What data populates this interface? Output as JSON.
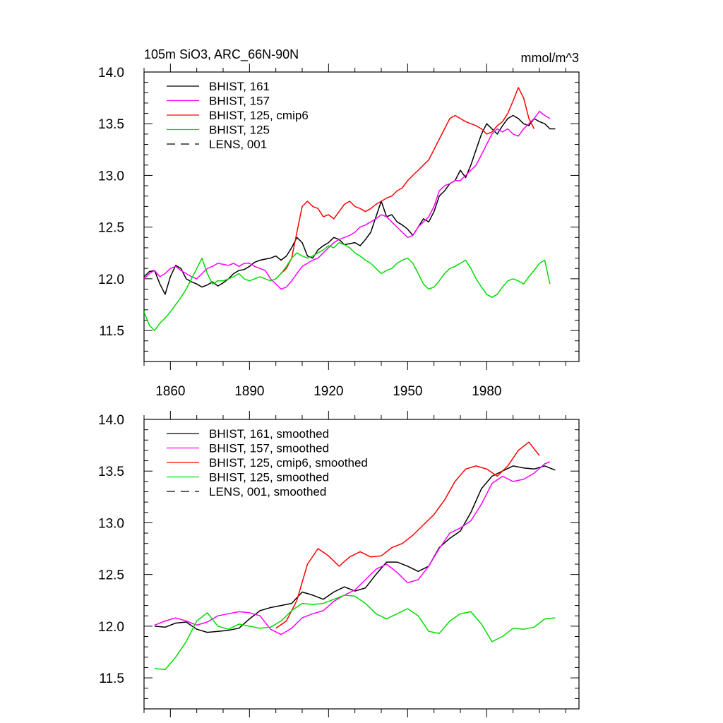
{
  "figure": {
    "title_left": "105m SiO3, ARC_66N-90N",
    "title_right": "mmol/m^3"
  },
  "chart_data": [
    {
      "type": "line",
      "title": "105m SiO3, ARC_66N-90N",
      "units": "mmol/m^3",
      "xlim": [
        1850,
        2015
      ],
      "ylim": [
        11.2,
        14.0
      ],
      "xticks": [
        1860,
        1890,
        1920,
        1950,
        1980
      ],
      "xtick_labels": [
        "1860",
        "1890",
        "1920",
        "1950",
        "1980"
      ],
      "yticks": [
        11.5,
        12.0,
        12.5,
        13.0,
        13.5,
        14.0
      ],
      "ytick_labels": [
        "11.5",
        "12.0",
        "12.5",
        "13.0",
        "13.5",
        "14.0"
      ],
      "legend_position": "top-left",
      "series": [
        {
          "name": "BHIST, 161",
          "color": "#000000",
          "dash": "solid",
          "x": [
            1850,
            1852,
            1854,
            1856,
            1858,
            1860,
            1862,
            1864,
            1866,
            1868,
            1870,
            1872,
            1874,
            1876,
            1878,
            1880,
            1882,
            1884,
            1886,
            1888,
            1890,
            1892,
            1894,
            1896,
            1898,
            1900,
            1902,
            1904,
            1906,
            1908,
            1910,
            1912,
            1914,
            1916,
            1918,
            1920,
            1922,
            1924,
            1926,
            1928,
            1930,
            1932,
            1934,
            1936,
            1938,
            1940,
            1942,
            1944,
            1946,
            1948,
            1950,
            1952,
            1954,
            1956,
            1958,
            1960,
            1962,
            1964,
            1966,
            1968,
            1970,
            1972,
            1974,
            1976,
            1978,
            1980,
            1982,
            1984,
            1986,
            1988,
            1990,
            1992,
            1994,
            1996,
            1998,
            2000,
            2002,
            2004,
            2006
          ],
          "y": [
            12.02,
            12.07,
            12.08,
            11.95,
            11.85,
            12.02,
            12.13,
            12.1,
            12.0,
            11.97,
            11.95,
            11.92,
            11.94,
            11.97,
            11.93,
            11.96,
            12.0,
            12.05,
            12.08,
            12.09,
            12.12,
            12.16,
            12.18,
            12.19,
            12.2,
            12.22,
            12.18,
            12.22,
            12.3,
            12.4,
            12.35,
            12.22,
            12.2,
            12.28,
            12.32,
            12.35,
            12.4,
            12.38,
            12.33,
            12.34,
            12.35,
            12.32,
            12.38,
            12.45,
            12.6,
            12.75,
            12.6,
            12.62,
            12.55,
            12.52,
            12.48,
            12.42,
            12.5,
            12.58,
            12.55,
            12.65,
            12.8,
            12.85,
            12.92,
            12.95,
            13.05,
            12.98,
            13.1,
            13.25,
            13.4,
            13.5,
            13.45,
            13.4,
            13.48,
            13.55,
            13.58,
            13.55,
            13.5,
            13.48,
            13.55,
            13.52,
            13.5,
            13.45,
            13.45
          ]
        },
        {
          "name": "BHIST, 157",
          "color": "#ff00ff",
          "dash": "solid",
          "x": [
            1850,
            1852,
            1854,
            1856,
            1858,
            1860,
            1862,
            1864,
            1866,
            1868,
            1870,
            1872,
            1874,
            1876,
            1878,
            1880,
            1882,
            1884,
            1886,
            1888,
            1890,
            1892,
            1894,
            1896,
            1898,
            1900,
            1902,
            1904,
            1906,
            1908,
            1910,
            1912,
            1914,
            1916,
            1918,
            1920,
            1922,
            1924,
            1926,
            1928,
            1930,
            1932,
            1934,
            1936,
            1938,
            1940,
            1942,
            1944,
            1946,
            1948,
            1950,
            1952,
            1954,
            1956,
            1958,
            1960,
            1962,
            1964,
            1966,
            1968,
            1970,
            1972,
            1974,
            1976,
            1978,
            1980,
            1982,
            1984,
            1986,
            1988,
            1990,
            1992,
            1994,
            1996,
            1998,
            2000,
            2002,
            2004
          ],
          "y": [
            12.0,
            12.05,
            12.08,
            12.02,
            12.05,
            12.1,
            12.12,
            12.08,
            12.05,
            12.02,
            12.0,
            12.05,
            12.1,
            12.12,
            12.15,
            12.14,
            12.13,
            12.15,
            12.12,
            12.15,
            12.15,
            12.12,
            12.1,
            12.08,
            12.0,
            11.95,
            11.9,
            11.92,
            11.98,
            12.05,
            12.12,
            12.15,
            12.18,
            12.2,
            12.25,
            12.3,
            12.35,
            12.38,
            12.4,
            12.42,
            12.45,
            12.5,
            12.52,
            12.55,
            12.58,
            12.62,
            12.6,
            12.55,
            12.5,
            12.45,
            12.4,
            12.42,
            12.5,
            12.55,
            12.6,
            12.7,
            12.85,
            12.9,
            12.92,
            12.95,
            12.95,
            13.0,
            13.05,
            13.1,
            13.2,
            13.3,
            13.4,
            13.45,
            13.42,
            13.45,
            13.4,
            13.38,
            13.45,
            13.5,
            13.55,
            13.62,
            13.58,
            13.55
          ]
        },
        {
          "name": "BHIST, 125, cmip6",
          "color": "#ff0000",
          "dash": "solid",
          "x": [
            1900,
            1902,
            1904,
            1906,
            1908,
            1910,
            1912,
            1914,
            1916,
            1918,
            1920,
            1922,
            1924,
            1926,
            1928,
            1930,
            1932,
            1934,
            1936,
            1938,
            1940,
            1942,
            1944,
            1946,
            1948,
            1950,
            1952,
            1954,
            1956,
            1958,
            1960,
            1962,
            1964,
            1966,
            1968,
            1970,
            1972,
            1974,
            1976,
            1978,
            1980,
            1982,
            1984,
            1986,
            1988,
            1990,
            1992,
            1994,
            1996,
            1998
          ],
          "y": [
            12.0,
            12.05,
            12.1,
            12.2,
            12.45,
            12.7,
            12.75,
            12.7,
            12.68,
            12.6,
            12.62,
            12.58,
            12.65,
            12.72,
            12.75,
            12.7,
            12.68,
            12.65,
            12.68,
            12.72,
            12.75,
            12.78,
            12.8,
            12.85,
            12.88,
            12.95,
            13.0,
            13.05,
            13.1,
            13.15,
            13.25,
            13.35,
            13.45,
            13.55,
            13.58,
            13.55,
            13.52,
            13.5,
            13.48,
            13.45,
            13.4,
            13.42,
            13.48,
            13.52,
            13.6,
            13.72,
            13.85,
            13.75,
            13.55,
            13.45
          ]
        },
        {
          "name": "BHIST, 125",
          "color": "#00dd00",
          "dash": "solid",
          "x": [
            1850,
            1852,
            1854,
            1856,
            1858,
            1860,
            1862,
            1864,
            1866,
            1868,
            1870,
            1872,
            1874,
            1876,
            1878,
            1880,
            1882,
            1884,
            1886,
            1888,
            1890,
            1892,
            1894,
            1896,
            1898,
            1900,
            1902,
            1904,
            1906,
            1908,
            1910,
            1912,
            1914,
            1916,
            1918,
            1920,
            1922,
            1924,
            1926,
            1928,
            1930,
            1932,
            1934,
            1936,
            1938,
            1940,
            1942,
            1944,
            1946,
            1948,
            1950,
            1952,
            1954,
            1956,
            1958,
            1960,
            1962,
            1964,
            1966,
            1968,
            1970,
            1972,
            1974,
            1976,
            1978,
            1980,
            1982,
            1984,
            1986,
            1988,
            1990,
            1992,
            1994,
            1996,
            1998,
            2000,
            2002,
            2004
          ],
          "y": [
            11.68,
            11.55,
            11.5,
            11.57,
            11.62,
            11.68,
            11.75,
            11.82,
            11.9,
            12.0,
            12.1,
            12.2,
            12.05,
            11.95,
            11.98,
            11.98,
            12.0,
            12.02,
            12.05,
            12.0,
            11.98,
            12.0,
            12.02,
            12.0,
            11.98,
            12.0,
            12.05,
            12.12,
            12.2,
            12.25,
            12.22,
            12.2,
            12.22,
            12.25,
            12.28,
            12.32,
            12.3,
            12.35,
            12.33,
            12.3,
            12.25,
            12.22,
            12.18,
            12.15,
            12.1,
            12.05,
            12.08,
            12.1,
            12.15,
            12.18,
            12.2,
            12.15,
            12.05,
            11.95,
            11.9,
            11.92,
            11.98,
            12.05,
            12.1,
            12.12,
            12.15,
            12.18,
            12.1,
            12.0,
            11.92,
            11.85,
            11.82,
            11.85,
            11.92,
            11.98,
            12.0,
            11.98,
            11.95,
            12.02,
            12.08,
            12.15,
            12.18,
            11.95
          ]
        }
      ]
    },
    {
      "type": "line",
      "title": "",
      "xlim": [
        1850,
        2015
      ],
      "ylim": [
        11.2,
        14.0
      ],
      "xticks": [
        1860,
        1890,
        1920,
        1950,
        1980
      ],
      "yticks": [
        11.5,
        12.0,
        12.5,
        13.0,
        13.5,
        14.0
      ],
      "ytick_labels": [
        "11.5",
        "12.0",
        "12.5",
        "13.0",
        "13.5",
        "14.0"
      ],
      "legend_position": "top-left",
      "series": [
        {
          "name": "BHIST, 161, smoothed",
          "color": "#000000",
          "dash": "solid",
          "x": [
            1854,
            1858,
            1862,
            1866,
            1870,
            1874,
            1878,
            1882,
            1886,
            1890,
            1894,
            1898,
            1902,
            1906,
            1910,
            1914,
            1918,
            1922,
            1926,
            1930,
            1934,
            1938,
            1942,
            1946,
            1950,
            1954,
            1958,
            1962,
            1966,
            1970,
            1974,
            1978,
            1982,
            1986,
            1990,
            1994,
            1998,
            2002,
            2006
          ],
          "y": [
            12.0,
            11.99,
            12.03,
            12.04,
            11.97,
            11.94,
            11.95,
            11.96,
            11.98,
            12.07,
            12.15,
            12.18,
            12.2,
            12.22,
            12.33,
            12.3,
            12.26,
            12.33,
            12.38,
            12.34,
            12.37,
            12.5,
            12.62,
            12.62,
            12.58,
            12.53,
            12.58,
            12.76,
            12.85,
            12.92,
            13.1,
            13.33,
            13.45,
            13.5,
            13.55,
            13.53,
            13.52,
            13.55,
            13.51
          ]
        },
        {
          "name": "BHIST, 157, smoothed",
          "color": "#ff00ff",
          "dash": "solid",
          "x": [
            1854,
            1858,
            1862,
            1866,
            1870,
            1874,
            1878,
            1882,
            1886,
            1890,
            1894,
            1898,
            1902,
            1906,
            1910,
            1914,
            1918,
            1922,
            1926,
            1930,
            1934,
            1938,
            1942,
            1946,
            1950,
            1954,
            1958,
            1962,
            1966,
            1970,
            1974,
            1978,
            1982,
            1986,
            1990,
            1994,
            1998,
            2002,
            2004
          ],
          "y": [
            12.01,
            12.05,
            12.08,
            12.05,
            12.01,
            12.04,
            12.1,
            12.12,
            12.14,
            12.13,
            12.1,
            11.97,
            11.92,
            11.98,
            12.08,
            12.12,
            12.15,
            12.24,
            12.3,
            12.35,
            12.45,
            12.55,
            12.6,
            12.52,
            12.42,
            12.45,
            12.58,
            12.75,
            12.9,
            12.95,
            13.02,
            13.18,
            13.38,
            13.45,
            13.4,
            13.42,
            13.48,
            13.57,
            13.59
          ]
        },
        {
          "name": "BHIST, 125, cmip6, smoothed",
          "color": "#ff0000",
          "dash": "solid",
          "x": [
            1900,
            1904,
            1908,
            1912,
            1916,
            1920,
            1924,
            1928,
            1932,
            1936,
            1940,
            1944,
            1948,
            1952,
            1956,
            1960,
            1964,
            1968,
            1972,
            1976,
            1980,
            1984,
            1988,
            1992,
            1996,
            2000
          ],
          "y": [
            11.98,
            12.05,
            12.25,
            12.6,
            12.75,
            12.68,
            12.58,
            12.67,
            12.72,
            12.67,
            12.68,
            12.76,
            12.8,
            12.88,
            12.98,
            13.08,
            13.22,
            13.4,
            13.52,
            13.55,
            13.52,
            13.45,
            13.55,
            13.7,
            13.78,
            13.65
          ]
        },
        {
          "name": "BHIST, 125, smoothed",
          "color": "#00dd00",
          "dash": "solid",
          "x": [
            1854,
            1858,
            1862,
            1866,
            1870,
            1874,
            1878,
            1882,
            1886,
            1890,
            1894,
            1898,
            1902,
            1906,
            1910,
            1914,
            1918,
            1922,
            1926,
            1930,
            1934,
            1938,
            1942,
            1946,
            1950,
            1954,
            1958,
            1962,
            1966,
            1970,
            1974,
            1978,
            1982,
            1986,
            1990,
            1994,
            1998,
            2002,
            2006
          ],
          "y": [
            11.59,
            11.58,
            11.7,
            11.85,
            12.05,
            12.13,
            12.0,
            11.97,
            12.02,
            12.0,
            11.98,
            11.99,
            12.05,
            12.15,
            12.22,
            12.21,
            12.22,
            12.26,
            12.3,
            12.29,
            12.22,
            12.12,
            12.07,
            12.12,
            12.17,
            12.1,
            11.95,
            11.93,
            12.05,
            12.12,
            12.14,
            12.02,
            11.85,
            11.9,
            11.98,
            11.97,
            11.99,
            12.07,
            12.08
          ]
        }
      ]
    }
  ],
  "legends": [
    {
      "items": [
        {
          "label": "BHIST, 161",
          "color": "#000000",
          "dash": "solid"
        },
        {
          "label": "BHIST, 157",
          "color": "#ff00ff",
          "dash": "solid"
        },
        {
          "label": "BHIST, 125, cmip6",
          "color": "#ff0000",
          "dash": "solid"
        },
        {
          "label": "BHIST, 125",
          "color": "#00dd00",
          "dash": "solid"
        },
        {
          "label": "LENS, 001",
          "color": "#000000",
          "dash": "dashed"
        }
      ]
    },
    {
      "items": [
        {
          "label": "BHIST, 161, smoothed",
          "color": "#000000",
          "dash": "solid"
        },
        {
          "label": "BHIST, 157, smoothed",
          "color": "#ff00ff",
          "dash": "solid"
        },
        {
          "label": "BHIST, 125, cmip6, smoothed",
          "color": "#ff0000",
          "dash": "solid"
        },
        {
          "label": "BHIST, 125, smoothed",
          "color": "#00dd00",
          "dash": "solid"
        },
        {
          "label": "LENS, 001, smoothed",
          "color": "#000000",
          "dash": "dashed"
        }
      ]
    }
  ]
}
